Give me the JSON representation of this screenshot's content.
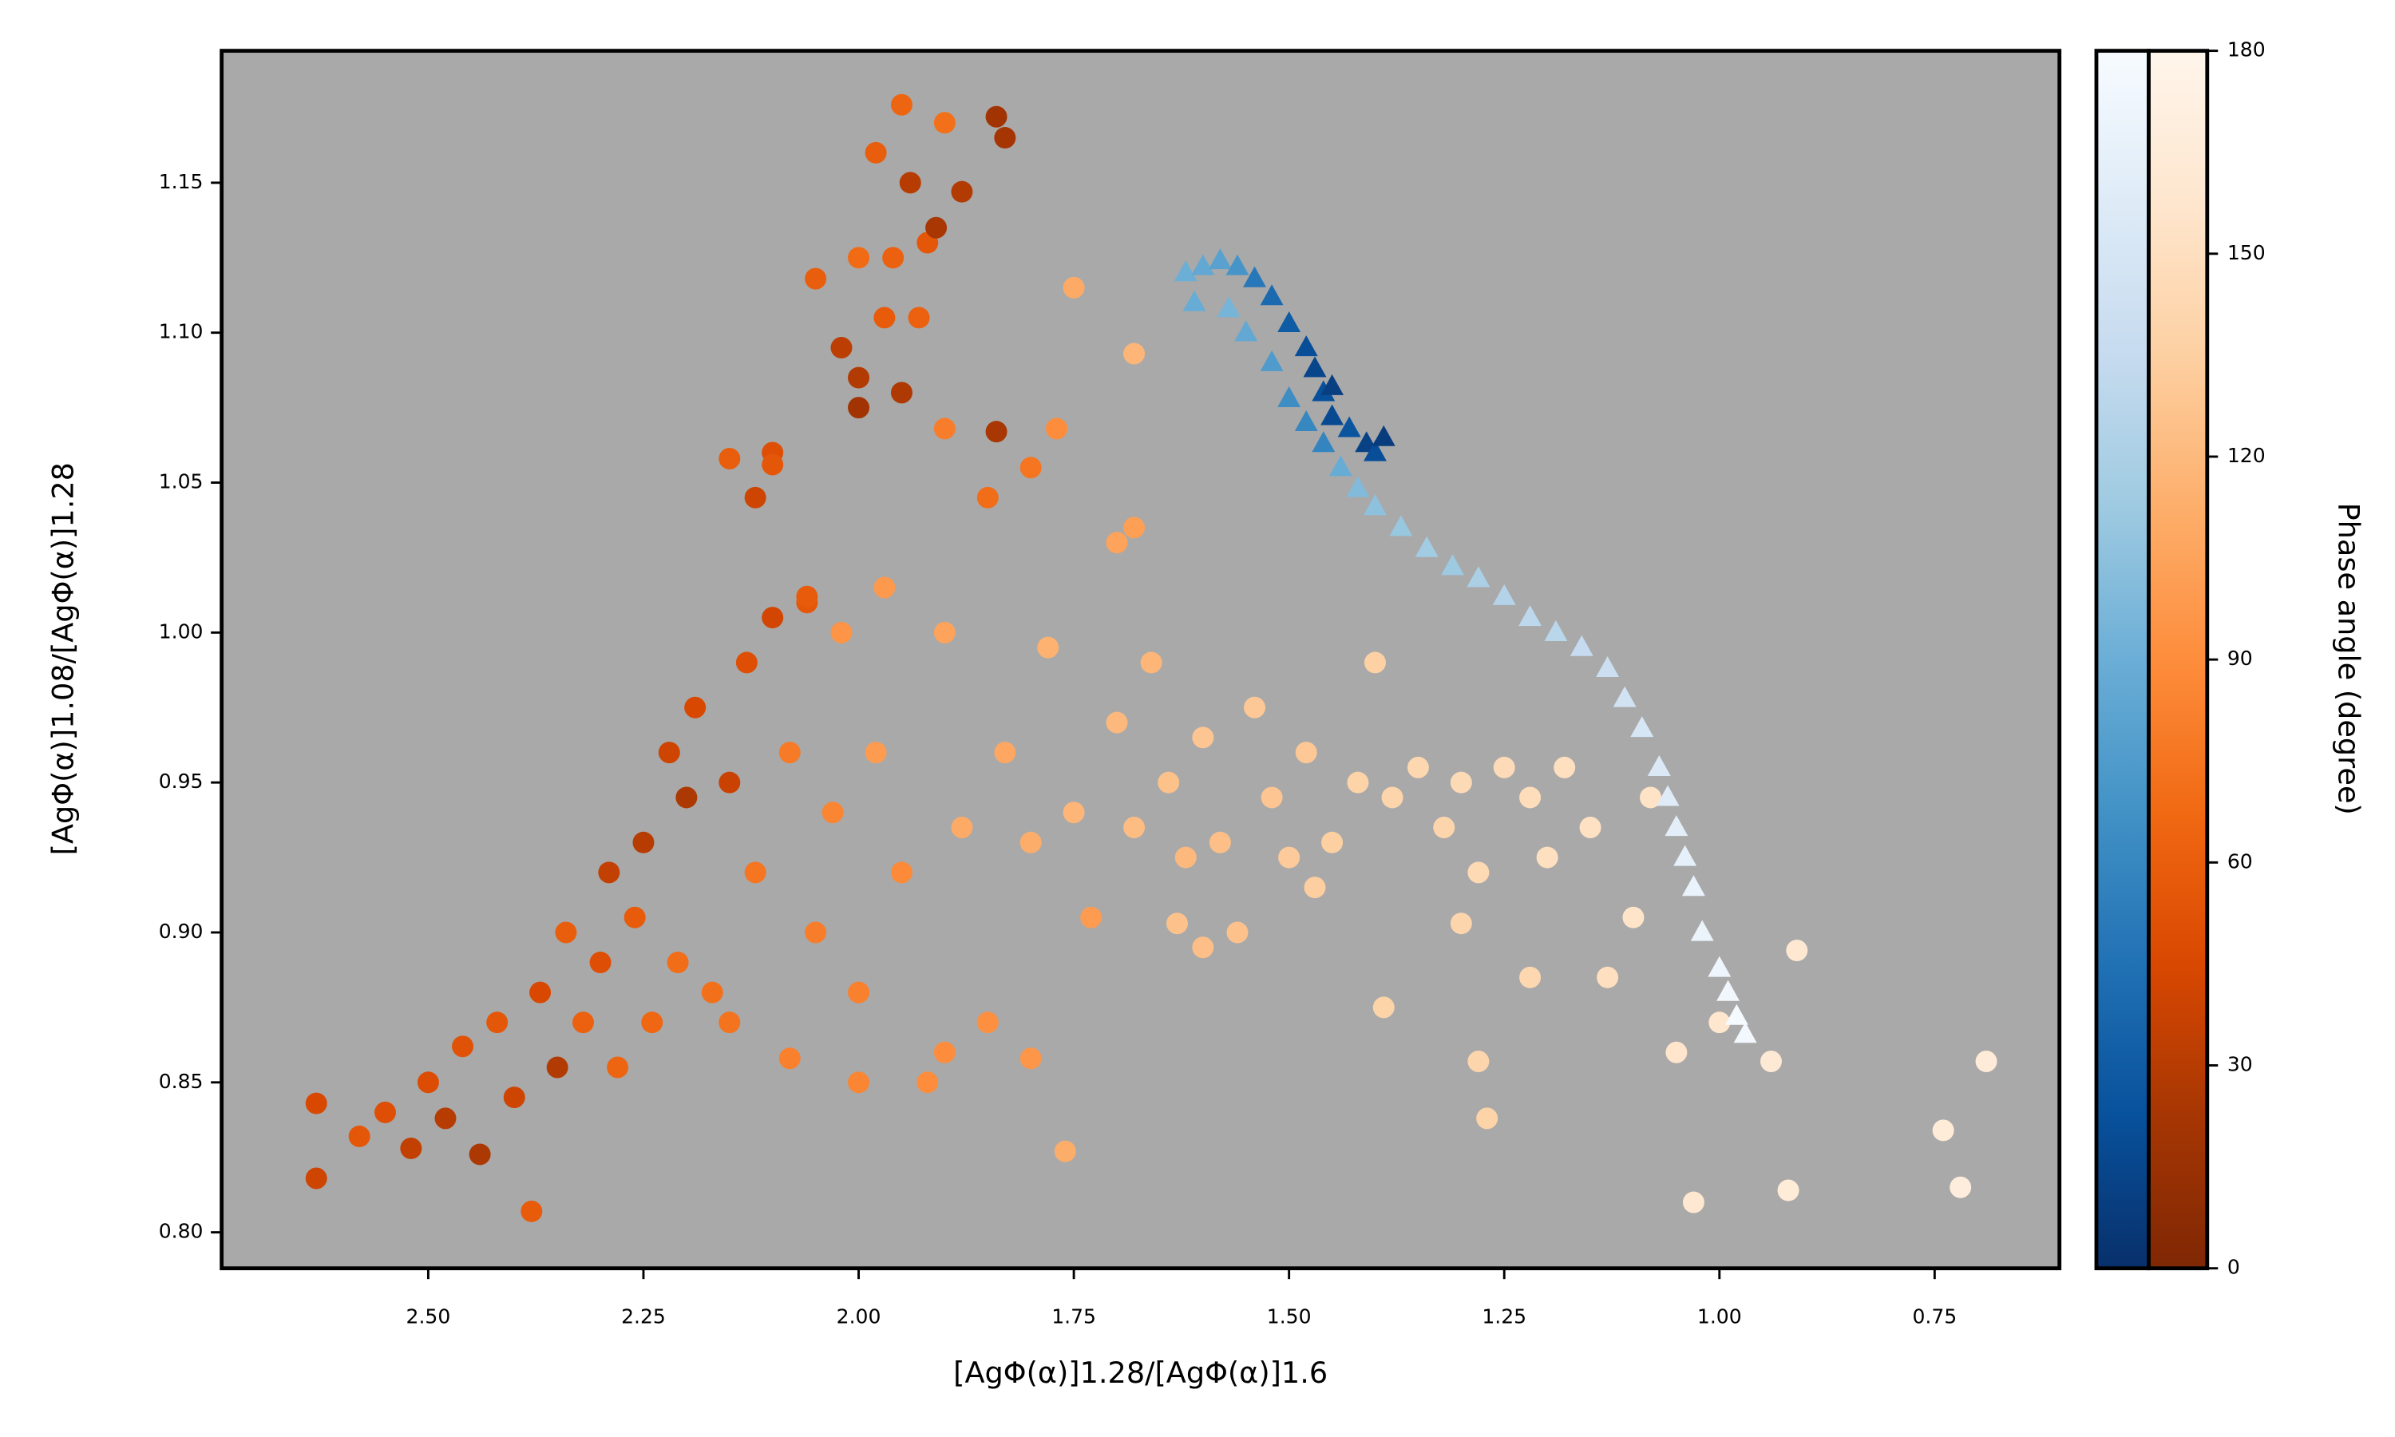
{
  "chart_data": {
    "type": "scatter",
    "xlabel": "[AgΦ(α)]1.28/[AgΦ(α)]1.6",
    "ylabel": "[AgΦ(α)]1.08/[AgΦ(α)]1.28",
    "colorbar_label": "Phase angle (degree)",
    "facecolor": "#a9a9a9",
    "xlim": [
      2.74,
      0.605
    ],
    "ylim": [
      0.788,
      1.194
    ],
    "xticks": [
      {
        "value": 2.5,
        "label": "2.50"
      },
      2.25,
      {
        "value": 2.0,
        "label": "2.00"
      },
      1.75,
      {
        "value": 1.5,
        "label": "1.50"
      },
      1.25,
      {
        "value": 1.0,
        "label": "1.00"
      },
      0.75
    ],
    "yticks": [
      {
        "value": 0.8,
        "label": "0.80"
      },
      0.85,
      {
        "value": 0.9,
        "label": "0.90"
      },
      0.95,
      {
        "value": 1.0,
        "label": "1.00"
      },
      1.05,
      {
        "value": 1.1,
        "label": "1.10"
      },
      1.15
    ],
    "clim": [
      0,
      180
    ],
    "cticks": [
      0,
      30,
      60,
      90,
      120,
      150,
      180
    ],
    "series": [
      {
        "marker": "circle",
        "colormap": [
          "#7f2704",
          "#a63603",
          "#d94801",
          "#f16913",
          "#fd8d3c",
          "#fdae6b",
          "#fdd0a2",
          "#fee6ce",
          "#fff5eb"
        ],
        "x": [
          2.63,
          2.63,
          2.58,
          2.55,
          2.52,
          2.5,
          2.48,
          2.46,
          2.44,
          2.42,
          2.4,
          2.38,
          2.37,
          2.35,
          2.34,
          2.32,
          2.3,
          2.29,
          2.28,
          2.26,
          2.25,
          2.24,
          2.22,
          2.21,
          2.2,
          2.19,
          2.17,
          2.15,
          2.13,
          2.12,
          2.1,
          2.08,
          2.06,
          2.05,
          2.03,
          2.02,
          2.0,
          1.98,
          1.97,
          1.95,
          1.92,
          1.9,
          1.88,
          1.85,
          1.83,
          1.8,
          1.78,
          1.75,
          1.73,
          1.7,
          1.68,
          1.66,
          1.64,
          1.62,
          1.6,
          1.58,
          1.56,
          1.54,
          1.52,
          1.5,
          1.48,
          1.45,
          1.42,
          1.4,
          1.38,
          1.35,
          1.32,
          1.3,
          1.28,
          1.25,
          1.22,
          1.2,
          1.18,
          1.15,
          1.13,
          1.1,
          1.08,
          1.05,
          1.03,
          1.0,
          0.94,
          0.91,
          0.92,
          0.74,
          0.72,
          0.69,
          1.39,
          1.28,
          1.27,
          1.22,
          1.3,
          1.47,
          1.6,
          1.63,
          1.76,
          1.8,
          1.9,
          2.0,
          2.08,
          2.15,
          1.95,
          1.9,
          1.84,
          1.83,
          1.98,
          1.94,
          1.88,
          1.92,
          1.96,
          2.0,
          1.91,
          1.97,
          2.02,
          2.0,
          1.95,
          2.0,
          1.93,
          2.05,
          1.9,
          1.84,
          1.77,
          1.75,
          1.68,
          2.1,
          2.12,
          2.1,
          2.15,
          1.8,
          1.85,
          1.7,
          1.68,
          2.06
        ],
        "y": [
          0.818,
          0.843,
          0.832,
          0.84,
          0.828,
          0.85,
          0.838,
          0.862,
          0.826,
          0.87,
          0.845,
          0.807,
          0.88,
          0.855,
          0.9,
          0.87,
          0.89,
          0.92,
          0.855,
          0.905,
          0.93,
          0.87,
          0.96,
          0.89,
          0.945,
          0.975,
          0.88,
          0.95,
          0.99,
          0.92,
          1.005,
          0.96,
          1.01,
          0.9,
          0.94,
          1.0,
          0.88,
          0.96,
          1.015,
          0.92,
          0.85,
          1.0,
          0.935,
          0.87,
          0.96,
          0.93,
          0.995,
          0.94,
          0.905,
          0.97,
          0.935,
          0.99,
          0.95,
          0.925,
          0.965,
          0.93,
          0.9,
          0.975,
          0.945,
          0.925,
          0.96,
          0.93,
          0.95,
          0.99,
          0.945,
          0.955,
          0.935,
          0.95,
          0.92,
          0.955,
          0.945,
          0.925,
          0.955,
          0.935,
          0.885,
          0.905,
          0.945,
          0.86,
          0.81,
          0.87,
          0.857,
          0.894,
          0.814,
          0.834,
          0.815,
          0.857,
          0.875,
          0.857,
          0.838,
          0.885,
          0.903,
          0.915,
          0.895,
          0.903,
          0.827,
          0.858,
          0.86,
          0.85,
          0.858,
          0.87,
          1.176,
          1.17,
          1.172,
          1.165,
          1.16,
          1.15,
          1.147,
          1.13,
          1.125,
          1.125,
          1.135,
          1.105,
          1.095,
          1.085,
          1.08,
          1.075,
          1.105,
          1.118,
          1.068,
          1.067,
          1.068,
          1.115,
          1.093,
          1.06,
          1.045,
          1.056,
          1.058,
          1.055,
          1.045,
          1.03,
          1.035,
          1.012
        ],
        "c": [
          40,
          45,
          55,
          50,
          35,
          48,
          30,
          52,
          25,
          55,
          40,
          58,
          45,
          28,
          60,
          62,
          50,
          35,
          65,
          58,
          30,
          66,
          40,
          70,
          25,
          45,
          72,
          38,
          50,
          75,
          42,
          78,
          55,
          80,
          85,
          95,
          82,
          100,
          98,
          88,
          90,
          105,
          110,
          92,
          108,
          112,
          115,
          118,
          100,
          120,
          122,
          118,
          125,
          120,
          128,
          124,
          126,
          130,
          128,
          132,
          130,
          135,
          138,
          136,
          140,
          142,
          140,
          145,
          144,
          146,
          148,
          150,
          150,
          152,
          150,
          155,
          154,
          156,
          160,
          158,
          162,
          160,
          165,
          166,
          168,
          165,
          138,
          140,
          138,
          142,
          140,
          134,
          124,
          126,
          112,
          96,
          90,
          85,
          82,
          74,
          65,
          72,
          20,
          22,
          60,
          30,
          28,
          55,
          62,
          68,
          24,
          58,
          32,
          28,
          26,
          20,
          62,
          60,
          80,
          24,
          90,
          110,
          118,
          50,
          40,
          55,
          60,
          75,
          70,
          105,
          102,
          58
        ]
      },
      {
        "marker": "triangle",
        "colormap": [
          "#08306b",
          "#08519c",
          "#2171b5",
          "#4292c6",
          "#6baed6",
          "#9ecae1",
          "#c6dbef",
          "#deebf7",
          "#f7fbff"
        ],
        "x": [
          1.62,
          1.6,
          1.58,
          1.56,
          1.54,
          1.52,
          1.5,
          1.48,
          1.47,
          1.46,
          1.45,
          1.43,
          1.41,
          1.4,
          1.57,
          1.55,
          1.52,
          1.5,
          1.48,
          1.46,
          1.44,
          1.42,
          1.4,
          1.37,
          1.34,
          1.31,
          1.28,
          1.25,
          1.22,
          1.19,
          1.16,
          1.13,
          1.11,
          1.09,
          1.07,
          1.06,
          1.05,
          1.04,
          1.03,
          1.02,
          1.0,
          0.99,
          0.98,
          0.97,
          1.61,
          1.45,
          1.39
        ],
        "y": [
          1.12,
          1.122,
          1.124,
          1.122,
          1.118,
          1.112,
          1.103,
          1.095,
          1.088,
          1.08,
          1.072,
          1.068,
          1.063,
          1.06,
          1.108,
          1.1,
          1.09,
          1.078,
          1.07,
          1.063,
          1.055,
          1.048,
          1.042,
          1.035,
          1.028,
          1.022,
          1.018,
          1.012,
          1.005,
          1.0,
          0.995,
          0.988,
          0.978,
          0.968,
          0.955,
          0.945,
          0.935,
          0.925,
          0.915,
          0.9,
          0.888,
          0.88,
          0.872,
          0.866,
          1.11,
          1.082,
          1.065
        ],
        "c": [
          90,
          85,
          80,
          70,
          50,
          40,
          30,
          20,
          15,
          22,
          18,
          25,
          12,
          20,
          95,
          85,
          75,
          65,
          60,
          58,
          88,
          100,
          105,
          110,
          115,
          112,
          120,
          125,
          130,
          128,
          135,
          140,
          145,
          150,
          155,
          158,
          162,
          165,
          168,
          170,
          172,
          175,
          178,
          176,
          88,
          10,
          8
        ]
      }
    ]
  }
}
